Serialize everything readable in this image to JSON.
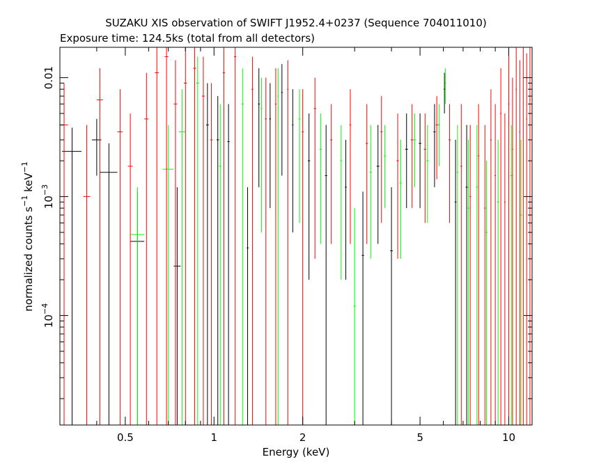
{
  "chart_data": {
    "type": "scatter",
    "title": "SUZAKU XIS observation of SWIFT J1952.4+0237 (Sequence 704011010)",
    "subtitle": "Exposure time: 124.5ks (total from all detectors)",
    "xlabel": "Energy (keV)",
    "ylabel": {
      "base": "normalized counts s",
      "exp1": "−1",
      "mid": " keV",
      "exp2": "−1"
    },
    "xscale": "log",
    "yscale": "log",
    "xlim": [
      0.3,
      12.0
    ],
    "ylim": [
      1.2e-05,
      0.018
    ],
    "x_ticks": [
      {
        "value": 0.5,
        "label": "0.5"
      },
      {
        "value": 1,
        "label": "1"
      },
      {
        "value": 2,
        "label": "2"
      },
      {
        "value": 5,
        "label": "5"
      },
      {
        "value": 10,
        "label": "10"
      }
    ],
    "y_ticks": [
      {
        "value": 0.0001,
        "base": "10",
        "exp": "−4"
      },
      {
        "value": 0.001,
        "base": "10",
        "exp": "−3"
      },
      {
        "value": 0.01,
        "label": "0.01"
      }
    ],
    "grid": false,
    "series": [
      {
        "color": "#000000",
        "points": [
          {
            "x": 0.33,
            "y": 0.0024,
            "xerr": 0.025,
            "yhi": 0.0038,
            "ylo": 1.2e-05
          },
          {
            "x": 0.4,
            "y": 0.003,
            "xerr": 0.015,
            "yhi": 0.0045,
            "ylo": 0.0015
          },
          {
            "x": 0.44,
            "y": 0.0016,
            "xerr": 0.03,
            "yhi": 0.0028,
            "ylo": 1.2e-05
          },
          {
            "x": 0.55,
            "y": 0.00042,
            "xerr": 0.03,
            "yhi": 0.0011,
            "ylo": 1.2e-05
          },
          {
            "x": 0.75,
            "y": 0.00026,
            "xerr": 0.02,
            "yhi": 0.0012,
            "ylo": 1.2e-05
          },
          {
            "x": 0.95,
            "y": 0.004,
            "xerr": 0.01,
            "yhi": 0.009,
            "ylo": 1.2e-05
          },
          {
            "x": 1.03,
            "y": 0.003,
            "xerr": 0.01,
            "yhi": 0.007,
            "ylo": 1.2e-05
          },
          {
            "x": 1.12,
            "y": 0.0029,
            "xerr": 0.01,
            "yhi": 0.006,
            "ylo": 1.2e-05
          },
          {
            "x": 1.3,
            "y": 0.00037,
            "xerr": 0.01,
            "yhi": 0.0012,
            "ylo": 1.2e-05
          },
          {
            "x": 1.42,
            "y": 0.006,
            "xerr": 0.01,
            "yhi": 0.012,
            "ylo": 0.0012
          },
          {
            "x": 1.55,
            "y": 0.0045,
            "xerr": 0.01,
            "yhi": 0.009,
            "ylo": 0.0008
          },
          {
            "x": 1.7,
            "y": 0.0075,
            "xerr": 0.01,
            "yhi": 0.013,
            "ylo": 0.0015
          },
          {
            "x": 1.85,
            "y": 0.004,
            "xerr": 0.01,
            "yhi": 0.008,
            "ylo": 0.0005
          },
          {
            "x": 2.1,
            "y": 0.002,
            "xerr": 0.02,
            "yhi": 0.005,
            "ylo": 0.0002
          },
          {
            "x": 2.4,
            "y": 0.0015,
            "xerr": 0.02,
            "yhi": 0.004,
            "ylo": 1.2e-05
          },
          {
            "x": 2.8,
            "y": 0.0012,
            "xerr": 0.02,
            "yhi": 0.003,
            "ylo": 0.0002
          },
          {
            "x": 3.2,
            "y": 0.00032,
            "xerr": 0.03,
            "yhi": 0.0011,
            "ylo": 1.2e-05
          },
          {
            "x": 3.6,
            "y": 0.0018,
            "xerr": 0.04,
            "yhi": 0.004,
            "ylo": 0.0004
          },
          {
            "x": 4.0,
            "y": 0.00035,
            "xerr": 0.04,
            "yhi": 0.0012,
            "ylo": 1.2e-05
          },
          {
            "x": 4.5,
            "y": 0.0025,
            "xerr": 0.05,
            "yhi": 0.005,
            "ylo": 0.0008
          },
          {
            "x": 5.0,
            "y": 0.0028,
            "xerr": 0.05,
            "yhi": 0.005,
            "ylo": 0.0008
          },
          {
            "x": 5.6,
            "y": 0.0035,
            "xerr": 0.05,
            "yhi": 0.006,
            "ylo": 0.0012
          },
          {
            "x": 6.05,
            "y": 0.008,
            "xerr": 0.03,
            "yhi": 0.011,
            "ylo": 0.005
          },
          {
            "x": 6.6,
            "y": 0.0009,
            "xerr": 0.05,
            "yhi": 0.003,
            "ylo": 1.2e-05
          },
          {
            "x": 7.2,
            "y": 0.0012,
            "xerr": 0.06,
            "yhi": 0.004,
            "ylo": 1.2e-05
          }
        ]
      },
      {
        "color": "#00ff00",
        "points": [
          {
            "x": 0.55,
            "y": 0.00048,
            "xerr": 0.03,
            "yhi": 0.0012,
            "ylo": 1.2e-05
          },
          {
            "x": 0.7,
            "y": 0.0017,
            "xerr": 0.03,
            "yhi": 0.004,
            "ylo": 1.2e-05
          },
          {
            "x": 0.78,
            "y": 0.0035,
            "xerr": 0.02,
            "yhi": 0.008,
            "ylo": 1.2e-05
          },
          {
            "x": 0.88,
            "y": 0.009,
            "xerr": 0.01,
            "yhi": 0.015,
            "ylo": 1.2e-05
          },
          {
            "x": 1.05,
            "y": 0.0018,
            "xerr": 0.01,
            "yhi": 0.006,
            "ylo": 1.2e-05
          },
          {
            "x": 1.25,
            "y": 0.006,
            "xerr": 0.01,
            "yhi": 0.012,
            "ylo": 1.2e-05
          },
          {
            "x": 1.45,
            "y": 0.0055,
            "xerr": 0.01,
            "yhi": 0.01,
            "ylo": 0.0005
          },
          {
            "x": 1.65,
            "y": 0.007,
            "xerr": 0.01,
            "yhi": 0.012,
            "ylo": 1.2e-05
          },
          {
            "x": 1.95,
            "y": 0.0045,
            "xerr": 0.015,
            "yhi": 0.008,
            "ylo": 0.0006
          },
          {
            "x": 2.3,
            "y": 0.0025,
            "xerr": 0.02,
            "yhi": 0.005,
            "ylo": 0.0004
          },
          {
            "x": 2.7,
            "y": 0.002,
            "xerr": 0.02,
            "yhi": 0.004,
            "ylo": 0.0002
          },
          {
            "x": 3.0,
            "y": 0.00012,
            "xerr": 0.03,
            "yhi": 0.0008,
            "ylo": 1.2e-05
          },
          {
            "x": 3.4,
            "y": 0.0016,
            "xerr": 0.03,
            "yhi": 0.004,
            "ylo": 0.0003
          },
          {
            "x": 3.8,
            "y": 0.0022,
            "xerr": 0.04,
            "yhi": 0.004,
            "ylo": 0.0008
          },
          {
            "x": 4.3,
            "y": 0.0013,
            "xerr": 0.04,
            "yhi": 0.003,
            "ylo": 0.0003
          },
          {
            "x": 4.8,
            "y": 0.003,
            "xerr": 0.05,
            "yhi": 0.005,
            "ylo": 0.0012
          },
          {
            "x": 5.3,
            "y": 0.002,
            "xerr": 0.05,
            "yhi": 0.004,
            "ylo": 0.0006
          },
          {
            "x": 5.8,
            "y": 0.004,
            "xerr": 0.05,
            "yhi": 0.006,
            "ylo": 0.0018
          },
          {
            "x": 6.1,
            "y": 0.009,
            "xerr": 0.03,
            "yhi": 0.012,
            "ylo": 0.006
          },
          {
            "x": 6.7,
            "y": 0.0016,
            "xerr": 0.05,
            "yhi": 0.004,
            "ylo": 1.2e-05
          },
          {
            "x": 7.3,
            "y": 0.0008,
            "xerr": 0.06,
            "yhi": 0.003,
            "ylo": 1.2e-05
          },
          {
            "x": 7.8,
            "y": 0.0012,
            "xerr": 0.06,
            "yhi": 0.004,
            "ylo": 1.2e-05
          },
          {
            "x": 8.4,
            "y": 0.0005,
            "xerr": 0.07,
            "yhi": 0.002,
            "ylo": 1.2e-05
          },
          {
            "x": 9.2,
            "y": 0.0009,
            "xerr": 0.08,
            "yhi": 0.003,
            "ylo": 1.2e-05
          },
          {
            "x": 10.2,
            "y": 0.0015,
            "xerr": 0.09,
            "yhi": 0.004,
            "ylo": 1.2e-05
          },
          {
            "x": 11.0,
            "y": 0.0007,
            "xerr": 0.1,
            "yhi": 0.003,
            "ylo": 1.2e-05
          }
        ]
      },
      {
        "color": "#ff0000",
        "points": [
          {
            "x": 0.31,
            "y": 0.004,
            "xerr": 0.01,
            "yhi": 0.009,
            "ylo": 1.2e-05
          },
          {
            "x": 0.37,
            "y": 0.001,
            "xerr": 0.01,
            "yhi": 0.004,
            "ylo": 1.2e-05
          },
          {
            "x": 0.41,
            "y": 0.0065,
            "xerr": 0.01,
            "yhi": 0.012,
            "ylo": 1.2e-05
          },
          {
            "x": 0.48,
            "y": 0.0035,
            "xerr": 0.01,
            "yhi": 0.008,
            "ylo": 1.2e-05
          },
          {
            "x": 0.52,
            "y": 0.0018,
            "xerr": 0.01,
            "yhi": 0.005,
            "ylo": 1.2e-05
          },
          {
            "x": 0.59,
            "y": 0.0045,
            "xerr": 0.01,
            "yhi": 0.011,
            "ylo": 1.2e-05
          },
          {
            "x": 0.64,
            "y": 0.011,
            "xerr": 0.01,
            "yhi": 0.018,
            "ylo": 1.2e-05
          },
          {
            "x": 0.69,
            "y": 0.015,
            "xerr": 0.01,
            "yhi": 0.018,
            "ylo": 1.2e-05
          },
          {
            "x": 0.74,
            "y": 0.006,
            "xerr": 0.01,
            "yhi": 0.014,
            "ylo": 1.2e-05
          },
          {
            "x": 0.8,
            "y": 0.009,
            "xerr": 0.01,
            "yhi": 0.018,
            "ylo": 1.2e-05
          },
          {
            "x": 0.86,
            "y": 0.012,
            "xerr": 0.01,
            "yhi": 0.018,
            "ylo": 1.2e-05
          },
          {
            "x": 0.92,
            "y": 0.007,
            "xerr": 0.01,
            "yhi": 0.015,
            "ylo": 1.2e-05
          },
          {
            "x": 0.98,
            "y": 0.003,
            "xerr": 0.01,
            "yhi": 0.009,
            "ylo": 1.2e-05
          },
          {
            "x": 1.08,
            "y": 0.011,
            "xerr": 0.01,
            "yhi": 0.018,
            "ylo": 1.2e-05
          },
          {
            "x": 1.18,
            "y": 0.015,
            "xerr": 0.01,
            "yhi": 0.018,
            "ylo": 1.2e-05
          },
          {
            "x": 1.35,
            "y": 0.008,
            "xerr": 0.01,
            "yhi": 0.015,
            "ylo": 1.2e-05
          },
          {
            "x": 1.5,
            "y": 0.0045,
            "xerr": 0.01,
            "yhi": 0.01,
            "ylo": 1.2e-05
          },
          {
            "x": 1.62,
            "y": 0.006,
            "xerr": 0.01,
            "yhi": 0.012,
            "ylo": 1.2e-05
          },
          {
            "x": 1.78,
            "y": 0.008,
            "xerr": 0.01,
            "yhi": 0.014,
            "ylo": 1.2e-05
          },
          {
            "x": 2.0,
            "y": 0.0035,
            "xerr": 0.015,
            "yhi": 0.008,
            "ylo": 1.2e-05
          },
          {
            "x": 2.2,
            "y": 0.0055,
            "xerr": 0.02,
            "yhi": 0.01,
            "ylo": 0.0003
          },
          {
            "x": 2.5,
            "y": 0.003,
            "xerr": 0.02,
            "yhi": 0.006,
            "ylo": 0.0004
          },
          {
            "x": 2.9,
            "y": 0.004,
            "xerr": 0.02,
            "yhi": 0.008,
            "ylo": 0.0004
          },
          {
            "x": 3.3,
            "y": 0.0028,
            "xerr": 0.03,
            "yhi": 0.006,
            "ylo": 0.0004
          },
          {
            "x": 3.7,
            "y": 0.0035,
            "xerr": 0.03,
            "yhi": 0.007,
            "ylo": 0.0006
          },
          {
            "x": 4.2,
            "y": 0.002,
            "xerr": 0.04,
            "yhi": 0.005,
            "ylo": 0.0003
          },
          {
            "x": 4.7,
            "y": 0.003,
            "xerr": 0.05,
            "yhi": 0.006,
            "ylo": 0.0008
          },
          {
            "x": 5.2,
            "y": 0.0025,
            "xerr": 0.05,
            "yhi": 0.005,
            "ylo": 0.0006
          },
          {
            "x": 5.7,
            "y": 0.004,
            "xerr": 0.05,
            "yhi": 0.007,
            "ylo": 0.0014
          },
          {
            "x": 6.3,
            "y": 0.003,
            "xerr": 0.05,
            "yhi": 0.006,
            "ylo": 0.0006
          },
          {
            "x": 6.9,
            "y": 0.0018,
            "xerr": 0.05,
            "yhi": 0.006,
            "ylo": 1.2e-05
          },
          {
            "x": 7.4,
            "y": 0.001,
            "xerr": 0.05,
            "yhi": 0.004,
            "ylo": 1.2e-05
          },
          {
            "x": 7.9,
            "y": 0.0022,
            "xerr": 0.05,
            "yhi": 0.006,
            "ylo": 1.2e-05
          },
          {
            "x": 8.3,
            "y": 0.0008,
            "xerr": 0.05,
            "yhi": 0.004,
            "ylo": 1.2e-05
          },
          {
            "x": 8.7,
            "y": 0.003,
            "xerr": 0.05,
            "yhi": 0.008,
            "ylo": 1.2e-05
          },
          {
            "x": 9.0,
            "y": 0.0015,
            "xerr": 0.05,
            "yhi": 0.006,
            "ylo": 1.2e-05
          },
          {
            "x": 9.4,
            "y": 0.005,
            "xerr": 0.05,
            "yhi": 0.012,
            "ylo": 1.2e-05
          },
          {
            "x": 9.7,
            "y": 0.0009,
            "xerr": 0.05,
            "yhi": 0.005,
            "ylo": 1.2e-05
          },
          {
            "x": 10.0,
            "y": 0.006,
            "xerr": 0.05,
            "yhi": 0.018,
            "ylo": 1.2e-05
          },
          {
            "x": 10.3,
            "y": 0.0025,
            "xerr": 0.05,
            "yhi": 0.01,
            "ylo": 1.2e-05
          },
          {
            "x": 10.6,
            "y": 0.008,
            "xerr": 0.05,
            "yhi": 0.018,
            "ylo": 1.2e-05
          },
          {
            "x": 10.9,
            "y": 0.0035,
            "xerr": 0.05,
            "yhi": 0.014,
            "ylo": 1.2e-05
          },
          {
            "x": 11.2,
            "y": 0.01,
            "xerr": 0.05,
            "yhi": 0.018,
            "ylo": 1.2e-05
          },
          {
            "x": 11.5,
            "y": 0.0045,
            "xerr": 0.05,
            "yhi": 0.016,
            "ylo": 1.2e-05
          },
          {
            "x": 11.8,
            "y": 0.0065,
            "xerr": 0.05,
            "yhi": 0.018,
            "ylo": 1.2e-05
          }
        ]
      }
    ]
  }
}
